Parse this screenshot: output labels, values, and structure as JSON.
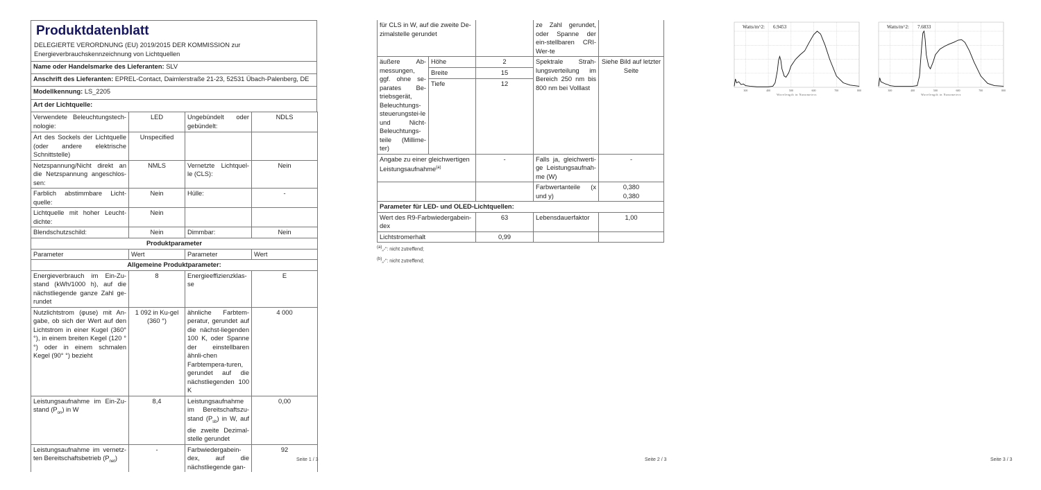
{
  "page1": {
    "title": "Produktdatenblatt",
    "subtitle": "DELEGIERTE VERORDNUNG (EU) 2019/2015 DER KOMMISSION zur Energieverbrauchskennzeichnung von Lichtquellen",
    "supplier_label": "Name oder Handelsmarke des Lieferanten:",
    "supplier": "SLV",
    "address_label": "Anschrift des Lieferanten:",
    "address": "EPREL-Contact, Daimlerstraße 21-23, 52531 Übach-Palenberg, DE",
    "model_label": "Modellkennung:",
    "model": "LS_2205",
    "type_heading": "Art der Lichtquelle:",
    "rows": [
      [
        "Verwendete Beleuchtungstech-nologie:",
        "LED",
        "Ungebündelt oder gebündelt:",
        "NDLS"
      ],
      [
        "Art des Sockels der Lichtquelle (oder andere elektrische Schnittstelle)",
        "Unspecified",
        "",
        ""
      ],
      [
        "Netzspannung/Nicht direkt an die Netzspannung angeschlos-sen:",
        "NMLS",
        "Vernetzte Lichtquel-le (CLS):",
        "Nein"
      ],
      [
        "Farblich abstimmbare Licht-quelle:",
        "Nein",
        "Hülle:",
        "-"
      ],
      [
        "Lichtquelle mit hoher Leucht-dichte:",
        "Nein",
        "",
        ""
      ],
      [
        "Blendschutzschild:",
        "Nein",
        "Dimmbar:",
        "Nein"
      ]
    ],
    "params_heading": "Produktparameter",
    "col_headers": [
      "Parameter",
      "Wert",
      "Parameter",
      "Wert"
    ],
    "general_heading": "Allgemeine Produktparameter:",
    "general_rows": [
      [
        "Energieverbrauch im Ein-Zu-stand (kWh/1000 h), auf die nächstliegende ganze Zahl ge-rundet",
        "8",
        "Energieeffizienzklas-se",
        "E"
      ],
      [
        "Nutzlichtstrom (φuse) mit An-gabe, ob sich der Wert auf den Lichtstrom in einer Kugel (360° °), in einem breiten Kegel (120 °°) oder in einem schmalen Kegel (90° °) bezieht",
        "1 092 in Ku-gel (360 °)",
        "ähnliche Farbtem-peratur, gerundet auf die nächst-liegenden 100 K, oder Spanne der einstellbaren ähnli-chen Farbtempera-turen, gerundet auf die nächstliegenden 100 K",
        "4 000"
      ]
    ],
    "pon_label": "Leistungsaufnahme im Ein-Zu-stand (P",
    "pon_sub": "on",
    "pon_tail": ") in W",
    "pon_value": "8,4",
    "psb_label": "Leistungsaufnahme im Bereitschaftszu-stand (P",
    "psb_sub": "sb",
    "psb_tail": ") in W, auf die zweite Dezimal-stelle gerundet",
    "psb_value": "0,00",
    "pnet_label": "Leistungsaufnahme im vernetz-ten Bereitschaftsbetrieb (P",
    "pnet_sub": "net",
    "pnet_tail": ")",
    "pnet_value": "-",
    "cri_label": "Farbwiedergabein-dex, auf die nächstliegende gan-",
    "cri_value": "92",
    "page_number": "Seite 1 / 3"
  },
  "page2": {
    "cont_left": "für CLS in W, auf die zweite De-zimalstelle gerundet",
    "cont_right": "ze Zahl gerundet, oder Spanne der ein-stellbaren CRI-Wer-te",
    "dims_label": "äußere Ab-messungen, ggf. ohne se-parates Be-triebsgerät, Beleuchtungs-steuerungstei-le und Nicht-Beleuchtungs-teile (Millime-ter)",
    "dims": [
      {
        "label": "Höhe",
        "value": "2"
      },
      {
        "label": "Breite",
        "value": "15"
      },
      {
        "label": "Tiefe",
        "value": "12"
      }
    ],
    "spectral_label": "Spektrale Strah-lungsverteilung im Bereich 250 nm bis 800 nm bei Volllast",
    "spectral_value": "Siehe Bild auf letzter Seite",
    "equiv_label": "Angabe zu einer gleichwertigen Leistungsaufnahme",
    "equiv_sup": "(a)",
    "equiv_value": "-",
    "equiv_w_label": "Falls ja, gleichwerti-ge Leistungsaufnah-me (W)",
    "equiv_w_value": "-",
    "chroma_label": "Farbwertanteile (x und y)",
    "chroma_x": "0,380",
    "chroma_y": "0,380",
    "led_heading": "Parameter für LED- und OLED-Lichtquellen:",
    "r9_label": "Wert des R9-Farbwiedergabein-dex",
    "r9_value": "63",
    "life_label": "Lebensdauerfaktor",
    "life_value": "1,00",
    "lumen_label": "Lichtstromerhalt",
    "lumen_value": "0,99",
    "footnotes": [
      {
        "mark": "(a)",
        "text": "„-“: nicht zutreffend;"
      },
      {
        "mark": "(b)",
        "text": "„-“: nicht zutreffend;"
      }
    ],
    "page_number": "Seite 2 / 3"
  },
  "page3": {
    "page_number": "Seite 3 / 3"
  },
  "chart_data": [
    {
      "type": "line",
      "annotation_label": "Watts/m^2:",
      "annotation_value": "6.9453",
      "xlabel": "Wavelength in Nanometers",
      "xlim": [
        250,
        800
      ],
      "xticks": [
        300,
        400,
        500,
        600,
        700,
        800
      ],
      "grid": true,
      "line_color": "#111111",
      "x": [
        250,
        255,
        260,
        270,
        280,
        290,
        300,
        320,
        350,
        400,
        420,
        430,
        440,
        445,
        450,
        455,
        460,
        470,
        478,
        490,
        500,
        520,
        540,
        560,
        580,
        600,
        615,
        630,
        650,
        670,
        700,
        730,
        760,
        800
      ],
      "y": [
        0.02,
        0.15,
        0.08,
        0.1,
        0.05,
        0.06,
        0.03,
        0.02,
        0.01,
        0.01,
        0.02,
        0.08,
        0.3,
        0.48,
        0.55,
        0.48,
        0.33,
        0.2,
        0.18,
        0.26,
        0.38,
        0.5,
        0.58,
        0.65,
        0.8,
        0.94,
        1.0,
        0.95,
        0.75,
        0.5,
        0.2,
        0.08,
        0.04,
        0.02
      ]
    },
    {
      "type": "line",
      "annotation_label": "Watts/m^2:",
      "annotation_value": "7.6833",
      "xlabel": "Wavelength in Nanometers",
      "xlim": [
        250,
        800
      ],
      "xticks": [
        300,
        400,
        500,
        600,
        700,
        800
      ],
      "grid": true,
      "line_color": "#111111",
      "x": [
        250,
        255,
        260,
        270,
        280,
        290,
        300,
        320,
        350,
        400,
        420,
        430,
        440,
        445,
        450,
        455,
        460,
        470,
        478,
        490,
        500,
        520,
        540,
        560,
        580,
        600,
        615,
        630,
        650,
        670,
        700,
        730,
        760,
        800
      ],
      "y": [
        0.02,
        0.17,
        0.1,
        0.08,
        0.06,
        0.05,
        0.03,
        0.02,
        0.02,
        0.02,
        0.03,
        0.2,
        0.75,
        0.97,
        1.0,
        0.85,
        0.58,
        0.38,
        0.33,
        0.45,
        0.58,
        0.68,
        0.73,
        0.77,
        0.8,
        0.84,
        0.85,
        0.8,
        0.65,
        0.45,
        0.2,
        0.07,
        0.03,
        0.02
      ]
    }
  ]
}
